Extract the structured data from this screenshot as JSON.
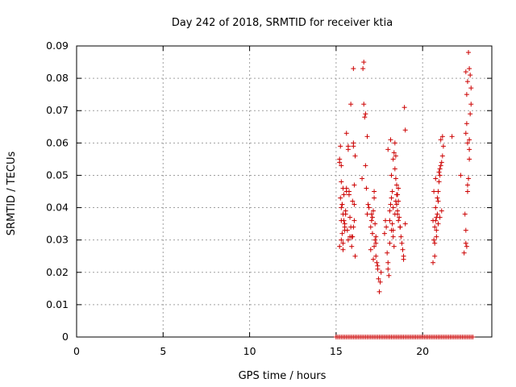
{
  "chart_data": {
    "type": "scatter",
    "title": "Day 242 of 2018, SRMTID for receiver ktia",
    "xlabel": "GPS time / hours",
    "ylabel": "SRMTID / TECUs",
    "xlim": [
      0,
      24
    ],
    "ylim": [
      0,
      0.09
    ],
    "xticks": [
      0,
      5,
      10,
      15,
      20
    ],
    "yticks": [
      0,
      0.01,
      0.02,
      0.03,
      0.04,
      0.05,
      0.06,
      0.07,
      0.08,
      0.09
    ],
    "xtick_labels": [
      "0",
      "5",
      "10",
      "15",
      "20"
    ],
    "ytick_labels": [
      "0",
      "0.01",
      "0.02",
      "0.03",
      "0.04",
      "0.05",
      "0.06",
      "0.07",
      "0.08",
      "0.09"
    ],
    "grid": true,
    "marker": "+",
    "color": "#cc0000",
    "series": [
      {
        "x": [
          15.2,
          15.25,
          15.3,
          15.3,
          15.35,
          15.35,
          15.4,
          15.4,
          15.45,
          15.5,
          15.6,
          15.6,
          15.7,
          15.7,
          15.75,
          15.8,
          15.85,
          15.9,
          16.0,
          16.0,
          16.05,
          16.05,
          16.1,
          15.95,
          16.0,
          15.2,
          15.3,
          15.4,
          15.5,
          15.65,
          15.8,
          15.9,
          16.1,
          15.35,
          15.55,
          15.25,
          15.45,
          15.75,
          16.0,
          15.6,
          15.3,
          15.85,
          15.5,
          15.4,
          16.05,
          15.7,
          15.2,
          15.95,
          15.55,
          15.3,
          16.5,
          16.55,
          16.6,
          16.6,
          16.65,
          16.7,
          16.75,
          16.8,
          16.85,
          16.9,
          17.0,
          17.05,
          17.1,
          17.15,
          17.2,
          17.2,
          17.25,
          17.3,
          17.3,
          17.35,
          17.4,
          17.45,
          17.5,
          17.55,
          17.6,
          17.0,
          17.1,
          17.2,
          17.3,
          17.4,
          16.7,
          16.8,
          17.05,
          17.25,
          17.15,
          17.8,
          17.85,
          17.9,
          17.95,
          18.0,
          18.0,
          18.05,
          18.1,
          18.1,
          18.15,
          18.2,
          18.2,
          18.25,
          18.3,
          18.3,
          18.35,
          18.4,
          18.4,
          18.45,
          18.5,
          18.5,
          18.55,
          18.6,
          18.6,
          18.65,
          18.7,
          18.75,
          18.8,
          18.85,
          18.9,
          18.95,
          19.0,
          18.15,
          18.35,
          18.45,
          18.55,
          18.2,
          18.3,
          18.4,
          18.5,
          18.6,
          18.1,
          18.25,
          18.45,
          18.7,
          18.9,
          19.0,
          18.0,
          18.3,
          18.55,
          20.6,
          20.65,
          20.7,
          20.7,
          20.75,
          20.8,
          20.8,
          20.85,
          20.9,
          20.9,
          20.95,
          21.0,
          21.0,
          21.05,
          21.1,
          21.15,
          21.2,
          20.75,
          20.85,
          20.95,
          21.05,
          20.7,
          20.8,
          20.9,
          21.0,
          21.1,
          20.65,
          20.75,
          21.15,
          20.6,
          21.7,
          22.2,
          22.4,
          22.45,
          22.5,
          22.5,
          22.55,
          22.6,
          22.6,
          22.65,
          22.7,
          22.7,
          22.75,
          22.8,
          22.5,
          22.55,
          22.6,
          22.65,
          22.7,
          22.75,
          22.5,
          22.6,
          22.7,
          22.8,
          22.55
        ],
        "y": [
          0.054,
          0.059,
          0.036,
          0.048,
          0.041,
          0.032,
          0.046,
          0.038,
          0.044,
          0.033,
          0.063,
          0.045,
          0.058,
          0.059,
          0.044,
          0.037,
          0.034,
          0.031,
          0.06,
          0.059,
          0.047,
          0.041,
          0.056,
          0.042,
          0.034,
          0.028,
          0.03,
          0.027,
          0.035,
          0.033,
          0.031,
          0.028,
          0.025,
          0.041,
          0.039,
          0.043,
          0.036,
          0.045,
          0.083,
          0.046,
          0.053,
          0.072,
          0.034,
          0.029,
          0.036,
          0.03,
          0.055,
          0.031,
          0.038,
          0.04,
          0.049,
          0.083,
          0.085,
          0.072,
          0.068,
          0.053,
          0.046,
          0.038,
          0.041,
          0.04,
          0.034,
          0.036,
          0.037,
          0.039,
          0.045,
          0.043,
          0.035,
          0.031,
          0.029,
          0.023,
          0.021,
          0.018,
          0.014,
          0.017,
          0.02,
          0.027,
          0.032,
          0.028,
          0.025,
          0.022,
          0.069,
          0.062,
          0.038,
          0.03,
          0.024,
          0.032,
          0.036,
          0.034,
          0.026,
          0.023,
          0.021,
          0.019,
          0.029,
          0.036,
          0.041,
          0.033,
          0.043,
          0.045,
          0.04,
          0.031,
          0.028,
          0.038,
          0.052,
          0.056,
          0.044,
          0.047,
          0.039,
          0.042,
          0.036,
          0.037,
          0.034,
          0.031,
          0.029,
          0.027,
          0.024,
          0.071,
          0.064,
          0.061,
          0.057,
          0.049,
          0.044,
          0.05,
          0.055,
          0.06,
          0.041,
          0.046,
          0.039,
          0.035,
          0.042,
          0.034,
          0.025,
          0.035,
          0.058,
          0.033,
          0.038,
          0.023,
          0.03,
          0.025,
          0.034,
          0.036,
          0.037,
          0.031,
          0.038,
          0.042,
          0.045,
          0.048,
          0.05,
          0.052,
          0.053,
          0.054,
          0.056,
          0.059,
          0.04,
          0.043,
          0.051,
          0.061,
          0.029,
          0.033,
          0.035,
          0.037,
          0.039,
          0.045,
          0.049,
          0.062,
          0.036,
          0.062,
          0.05,
          0.026,
          0.038,
          0.033,
          0.029,
          0.028,
          0.045,
          0.047,
          0.049,
          0.055,
          0.061,
          0.069,
          0.072,
          0.082,
          0.075,
          0.079,
          0.088,
          0.083,
          0.081,
          0.063,
          0.06,
          0.058,
          0.077,
          0.066
        ]
      },
      {
        "x": [
          15.0,
          15.1,
          15.2,
          15.3,
          15.4,
          15.5,
          15.6,
          15.7,
          15.8,
          15.9,
          16.0,
          16.1,
          16.2,
          16.3,
          16.4,
          16.5,
          16.6,
          16.7,
          16.8,
          16.9,
          17.0,
          17.1,
          17.2,
          17.3,
          17.4,
          17.5,
          17.6,
          17.7,
          17.8,
          17.9,
          18.0,
          18.1,
          18.2,
          18.3,
          18.4,
          18.5,
          18.6,
          18.7,
          18.8,
          18.9,
          19.0,
          19.1,
          19.2,
          19.3,
          19.4,
          19.5,
          19.6,
          19.7,
          19.8,
          19.9,
          20.0,
          20.1,
          20.2,
          20.3,
          20.4,
          20.5,
          20.6,
          20.7,
          20.8,
          20.9,
          21.0,
          21.1,
          21.2,
          21.3,
          21.4,
          21.5,
          21.6,
          21.7,
          21.8,
          21.9,
          22.0,
          22.1,
          22.2,
          22.3,
          22.4,
          22.5,
          22.6,
          22.7,
          22.8,
          22.9
        ],
        "y": [
          0,
          0,
          0,
          0,
          0,
          0,
          0,
          0,
          0,
          0,
          0,
          0,
          0,
          0,
          0,
          0,
          0,
          0,
          0,
          0,
          0,
          0,
          0,
          0,
          0,
          0,
          0,
          0,
          0,
          0,
          0,
          0,
          0,
          0,
          0,
          0,
          0,
          0,
          0,
          0,
          0,
          0,
          0,
          0,
          0,
          0,
          0,
          0,
          0,
          0,
          0,
          0,
          0,
          0,
          0,
          0,
          0,
          0,
          0,
          0,
          0,
          0,
          0,
          0,
          0,
          0,
          0,
          0,
          0,
          0,
          0,
          0,
          0,
          0,
          0,
          0,
          0,
          0,
          0,
          0
        ]
      }
    ]
  }
}
